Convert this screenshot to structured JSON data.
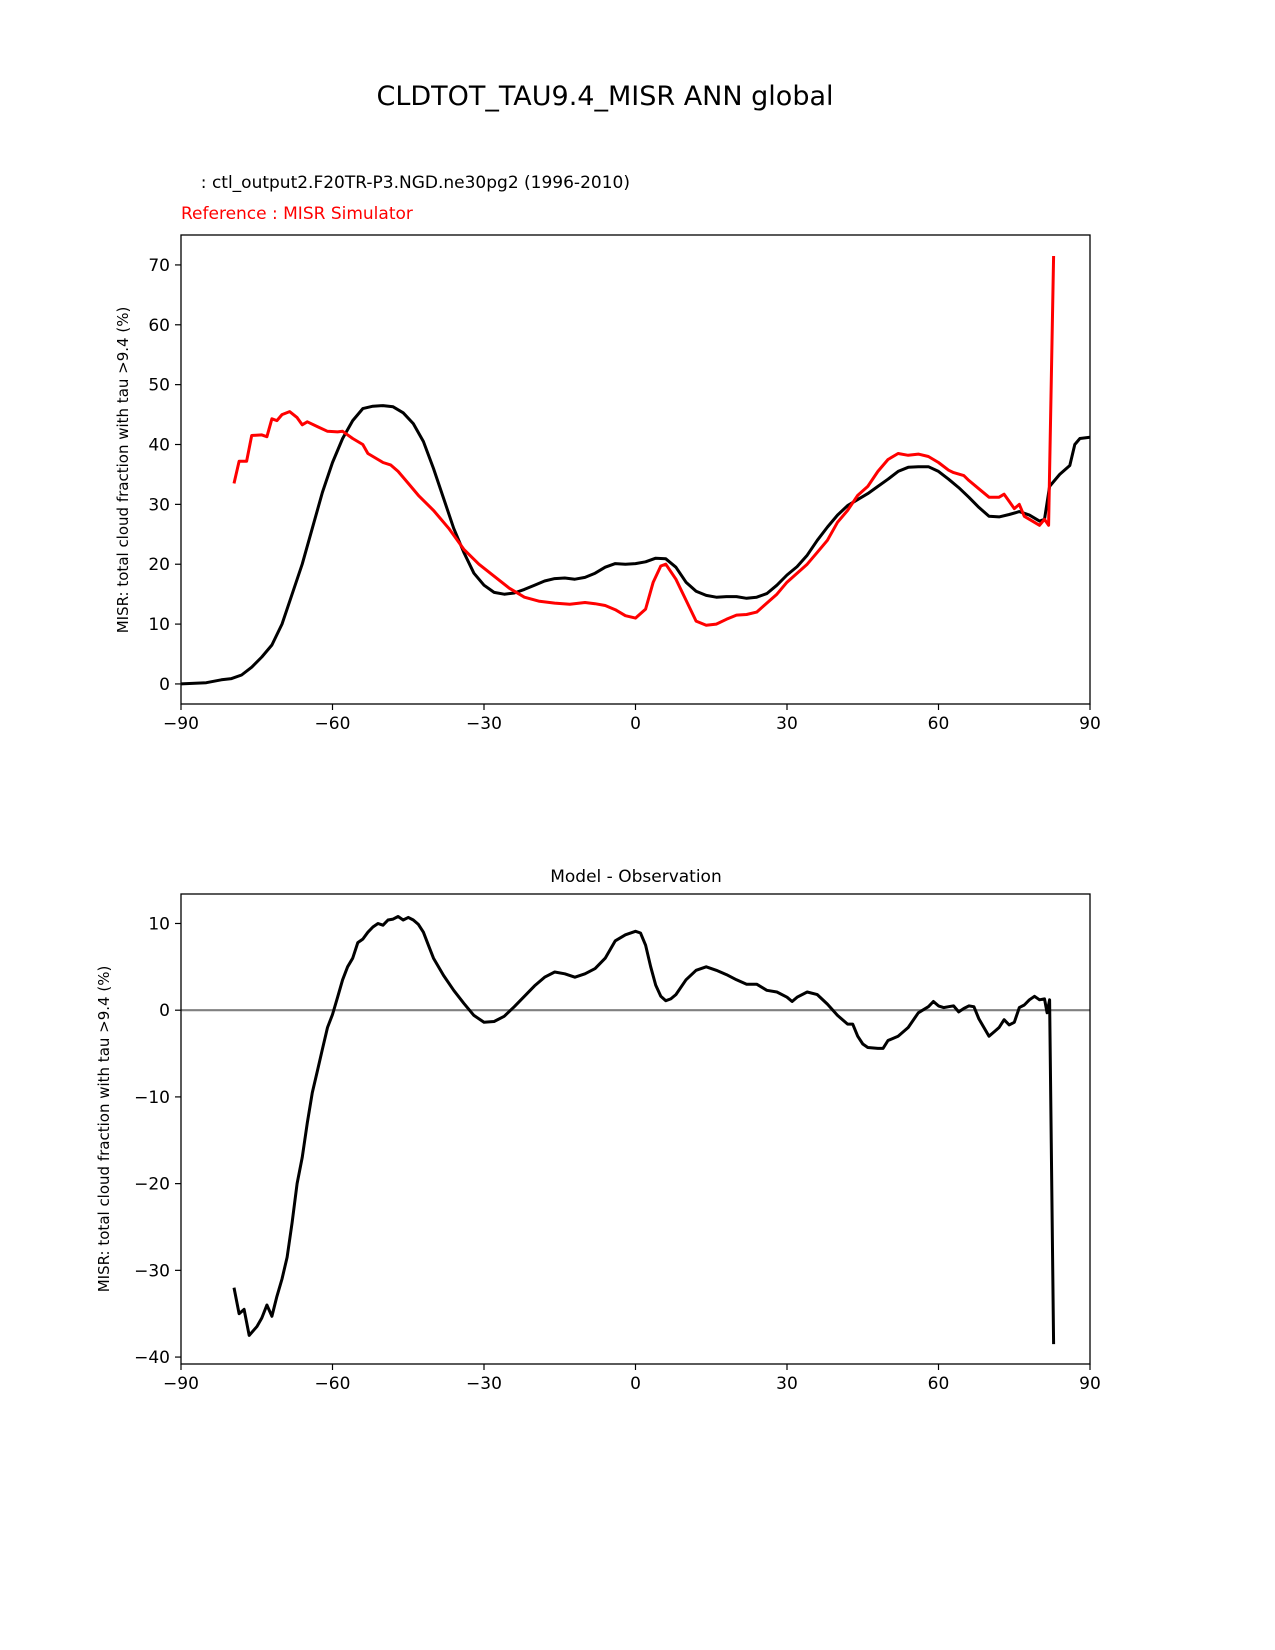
{
  "figure_title": "CLDTOT_TAU9.4_MISR ANN global",
  "chart_data": [
    {
      "type": "line",
      "title_test": "  : ctl_output2.F20TR-P3.NGD.ne30pg2 (1996-2010)",
      "title_reference": "Reference : MISR Simulator",
      "xlabel": "",
      "ylabel": "MISR: total cloud fraction with tau >9.4 (%)",
      "xlim": [
        -90,
        90
      ],
      "ylim": [
        -3.35,
        75
      ],
      "xticks": [
        -90,
        -60,
        -30,
        0,
        30,
        60,
        90
      ],
      "xtick_labels": [
        "−90",
        "−60",
        "−30",
        "0",
        "30",
        "60",
        "90"
      ],
      "yticks": [
        0,
        10,
        20,
        30,
        40,
        50,
        60,
        70
      ],
      "ytick_labels": [
        "0",
        "10",
        "20",
        "30",
        "40",
        "50",
        "60",
        "70"
      ],
      "series": [
        {
          "name": "test",
          "color": "#000000",
          "x": [
            -90,
            -85,
            -82,
            -80,
            -78,
            -76,
            -74,
            -72,
            -70,
            -68,
            -66,
            -64,
            -62,
            -60,
            -58,
            -56,
            -54,
            -52,
            -50,
            -48,
            -46,
            -44,
            -42,
            -40,
            -38,
            -36,
            -34,
            -32,
            -30,
            -28,
            -26,
            -24,
            -22,
            -20,
            -18,
            -16,
            -14,
            -12,
            -10,
            -8,
            -6,
            -4,
            -2,
            0,
            2,
            4,
            6,
            8,
            10,
            12,
            14,
            16,
            18,
            20,
            22,
            24,
            26,
            28,
            30,
            32,
            34,
            36,
            38,
            40,
            42,
            44,
            46,
            48,
            50,
            52,
            54,
            56,
            58,
            60,
            62,
            64,
            66,
            68,
            70,
            72,
            74,
            76,
            78,
            80,
            81,
            82,
            84,
            86,
            87,
            88,
            90
          ],
          "y": [
            0,
            0.2,
            0.7,
            0.9,
            1.5,
            2.8,
            4.5,
            6.5,
            10,
            15,
            20,
            26,
            32,
            37,
            41,
            44,
            46,
            46.4,
            46.5,
            46.3,
            45.3,
            43.5,
            40.5,
            36,
            31,
            26,
            22,
            18.5,
            16.5,
            15.3,
            15,
            15.2,
            15.8,
            16.5,
            17.2,
            17.6,
            17.7,
            17.5,
            17.8,
            18.5,
            19.5,
            20.1,
            20,
            20.1,
            20.4,
            21,
            20.9,
            19.5,
            17,
            15.5,
            14.8,
            14.5,
            14.6,
            14.6,
            14.3,
            14.5,
            15.1,
            16.5,
            18.2,
            19.6,
            21.5,
            24,
            26.2,
            28.2,
            29.8,
            30.8,
            31.8,
            33,
            34.2,
            35.5,
            36.2,
            36.3,
            36.3,
            35.5,
            34.2,
            32.8,
            31.2,
            29.5,
            28,
            27.9,
            28.3,
            28.8,
            28.2,
            27.2,
            27.5,
            33,
            35,
            36.5,
            40,
            41,
            41.2
          ]
        },
        {
          "name": "reference",
          "color": "#ff0000",
          "x": [
            -79.5,
            -78.5,
            -77,
            -76,
            -74,
            -73,
            -72,
            -71,
            -70,
            -68.5,
            -67,
            -66,
            -65,
            -63,
            -61,
            -59,
            -58,
            -56,
            -54,
            -53,
            -51,
            -50,
            -48.5,
            -47,
            -45,
            -43,
            -40,
            -37,
            -34,
            -31,
            -28,
            -25,
            -22,
            -19,
            -16,
            -13,
            -10,
            -8,
            -6,
            -4,
            -2,
            0,
            2,
            3.5,
            5,
            6,
            8,
            10,
            12,
            14,
            16,
            18,
            20,
            22,
            24,
            26,
            28,
            30,
            32,
            34,
            36,
            38,
            40,
            42,
            44,
            46,
            48,
            50,
            52,
            54,
            56,
            58,
            60,
            62,
            63,
            65,
            66,
            68,
            70,
            72,
            73,
            74,
            75,
            76,
            77,
            78,
            80,
            81,
            81.8,
            82.8
          ],
          "y": [
            33.5,
            37.2,
            37.2,
            41.5,
            41.6,
            41.3,
            44.3,
            44,
            45,
            45.5,
            44.5,
            43.3,
            43.8,
            43,
            42.2,
            42.1,
            42.2,
            41,
            40,
            38.5,
            37.5,
            37,
            36.6,
            35.5,
            33.5,
            31.5,
            29,
            26,
            22.5,
            20,
            18,
            16,
            14.5,
            13.8,
            13.5,
            13.3,
            13.6,
            13.4,
            13.1,
            12.4,
            11.4,
            11,
            12.5,
            17,
            19.7,
            20,
            17.5,
            14,
            10.5,
            9.8,
            10,
            10.8,
            11.5,
            11.6,
            12,
            13.5,
            15,
            17,
            18.5,
            20,
            22,
            24,
            27,
            29,
            31.5,
            33,
            35.5,
            37.5,
            38.5,
            38.2,
            38.4,
            38,
            37,
            35.7,
            35.3,
            34.8,
            34,
            32.6,
            31.2,
            31.2,
            31.7,
            30.5,
            29.3,
            30,
            28,
            27.5,
            26.5,
            27.5,
            26.5,
            71.5
          ]
        }
      ]
    },
    {
      "type": "line",
      "title": "Model - Observation",
      "xlabel": "",
      "ylabel": "MISR: total cloud fraction with tau >9.4 (%)",
      "xlim": [
        -90,
        90
      ],
      "ylim": [
        -40.8,
        13.4
      ],
      "xticks": [
        -90,
        -60,
        -30,
        0,
        30,
        60,
        90
      ],
      "xtick_labels": [
        "−90",
        "−60",
        "−30",
        "0",
        "30",
        "60",
        "90"
      ],
      "yticks": [
        -40,
        -30,
        -20,
        -10,
        0,
        10
      ],
      "ytick_labels": [
        "−40",
        "−30",
        "−20",
        "−10",
        "0",
        "10"
      ],
      "zero_line_color": "#808080",
      "series": [
        {
          "name": "difference",
          "color": "#000000",
          "x": [
            -79.5,
            -78.5,
            -77.5,
            -76.5,
            -75,
            -74,
            -73,
            -72,
            -71,
            -70,
            -69,
            -68,
            -67,
            -66,
            -65,
            -64,
            -63,
            -62,
            -61,
            -60,
            -59,
            -58,
            -57,
            -56,
            -55,
            -54,
            -53,
            -52,
            -51,
            -50,
            -49,
            -48,
            -47,
            -46,
            -45,
            -44,
            -43,
            -42,
            -41,
            -40,
            -38,
            -36,
            -34,
            -32,
            -30,
            -28,
            -26,
            -24,
            -22,
            -20,
            -18,
            -16,
            -14,
            -12,
            -10,
            -8,
            -6,
            -4,
            -2,
            0,
            1,
            2,
            3,
            4,
            5,
            6,
            7,
            8,
            10,
            12,
            14,
            16,
            18,
            20,
            22,
            24,
            26,
            28,
            30,
            31,
            32,
            34,
            36,
            38,
            40,
            42,
            43,
            44,
            45,
            46,
            48,
            49,
            50,
            52,
            54,
            56,
            58,
            59,
            60,
            61,
            62,
            63,
            64,
            65,
            66,
            67,
            68,
            70,
            71,
            72,
            73,
            74,
            75,
            76,
            77,
            78,
            79,
            80,
            81,
            81.5,
            82,
            82.8
          ],
          "y": [
            -32,
            -35,
            -34.5,
            -37.5,
            -36.5,
            -35.5,
            -34,
            -35.3,
            -33,
            -31,
            -28.5,
            -24.5,
            -20,
            -17,
            -13,
            -9.5,
            -7,
            -4.5,
            -2,
            -0.5,
            1.5,
            3.5,
            5,
            6,
            7.8,
            8.2,
            9,
            9.6,
            10,
            9.8,
            10.4,
            10.5,
            10.8,
            10.4,
            10.7,
            10.4,
            9.9,
            9,
            7.5,
            6,
            4,
            2.3,
            0.8,
            -0.6,
            -1.4,
            -1.3,
            -0.7,
            0.4,
            1.6,
            2.8,
            3.8,
            4.4,
            4.2,
            3.8,
            4.2,
            4.8,
            6,
            8,
            8.7,
            9.1,
            8.9,
            7.5,
            5,
            2.9,
            1.6,
            1.1,
            1.3,
            1.8,
            3.5,
            4.6,
            5,
            4.6,
            4.1,
            3.5,
            3,
            3,
            2.3,
            2.1,
            1.5,
            1,
            1.5,
            2.1,
            1.8,
            0.7,
            -0.6,
            -1.6,
            -1.6,
            -3,
            -3.9,
            -4.3,
            -4.4,
            -4.4,
            -3.5,
            -3,
            -2,
            -0.3,
            0.4,
            1,
            0.5,
            0.3,
            0.4,
            0.5,
            -0.2,
            0.2,
            0.5,
            0.4,
            -1,
            -3,
            -2.5,
            -2,
            -1.1,
            -1.7,
            -1.4,
            0.3,
            0.6,
            1.2,
            1.6,
            1.2,
            1.3,
            -0.3,
            1.2,
            -38.5
          ]
        }
      ]
    }
  ]
}
